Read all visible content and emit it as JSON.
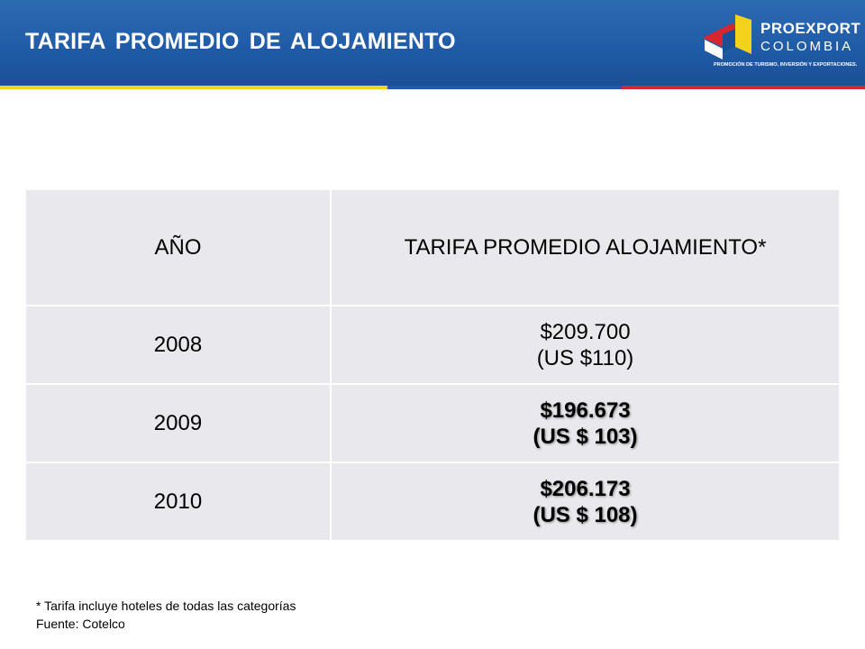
{
  "header": {
    "title": "TARIFA  PROMEDIO  DE ALOJAMIENTO",
    "logo": {
      "name": "PROEXPORT",
      "country": "COLOMBIA",
      "tagline": "PROMOCIÓN DE TURISMO, INVERSIÓN Y EXPORTACIONES."
    }
  },
  "table": {
    "columns": [
      "AÑO",
      "TARIFA PROMEDIO ALOJAMIENTO*"
    ],
    "rows": [
      [
        "2008",
        "$209.700",
        "(US $110)"
      ],
      [
        "2009",
        "$196.673",
        "(US $ 103)"
      ],
      [
        "2010",
        "$206.173",
        "(US $ 108)"
      ]
    ]
  },
  "notes": [
    "* Tarifa incluye hoteles de todas las categorías",
    "Fuente: Cotelco"
  ]
}
